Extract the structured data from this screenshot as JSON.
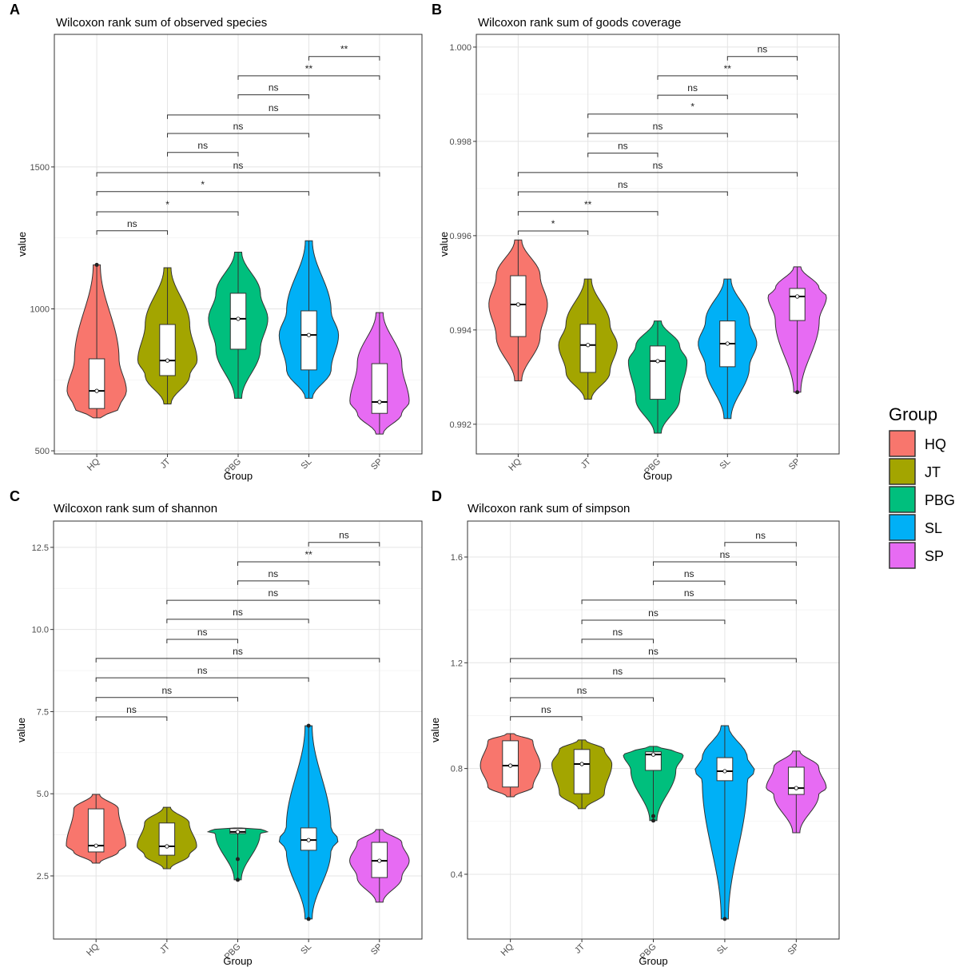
{
  "chart_data": [
    {
      "type": "violin",
      "panel_label": "A",
      "title": "Wilcoxon rank sum of observed species",
      "x_label": "Group",
      "y_label": "value",
      "categories": [
        "HQ",
        "JT",
        "PBG",
        "SL",
        "SP"
      ],
      "ylim": [
        489,
        1967
      ],
      "yticks": [
        500,
        1000,
        1500
      ],
      "series": [
        {
          "name": "HQ",
          "color": "#F8766D",
          "min": 616,
          "q1": 649,
          "median": 711,
          "q3": 824,
          "max": 1155,
          "outliers": [
            1155
          ]
        },
        {
          "name": "JT",
          "color": "#A3A500",
          "min": 665,
          "q1": 765,
          "median": 818,
          "q3": 945,
          "max": 1145,
          "outliers": []
        },
        {
          "name": "PBG",
          "color": "#00BF7D",
          "min": 685,
          "q1": 858,
          "median": 965,
          "q3": 1055,
          "max": 1200,
          "outliers": []
        },
        {
          "name": "SL",
          "color": "#00B0F6",
          "min": 685,
          "q1": 785,
          "median": 908,
          "q3": 993,
          "max": 1240,
          "outliers": []
        },
        {
          "name": "SP",
          "color": "#E76BF3",
          "min": 559,
          "q1": 632,
          "median": 672,
          "q3": 807,
          "max": 987,
          "outliers": []
        }
      ],
      "comparisons": [
        {
          "groups": [
            "HQ",
            "JT"
          ],
          "y": 1275,
          "label": "ns"
        },
        {
          "groups": [
            "HQ",
            "PBG"
          ],
          "y": 1342,
          "label": "*"
        },
        {
          "groups": [
            "HQ",
            "SL"
          ],
          "y": 1413,
          "label": "*"
        },
        {
          "groups": [
            "HQ",
            "SP"
          ],
          "y": 1480,
          "label": "ns"
        },
        {
          "groups": [
            "JT",
            "PBG"
          ],
          "y": 1551,
          "label": "ns"
        },
        {
          "groups": [
            "JT",
            "SL"
          ],
          "y": 1618,
          "label": "ns"
        },
        {
          "groups": [
            "JT",
            "SP"
          ],
          "y": 1683,
          "label": "ns"
        },
        {
          "groups": [
            "PBG",
            "SL"
          ],
          "y": 1754,
          "label": "ns"
        },
        {
          "groups": [
            "PBG",
            "SP"
          ],
          "y": 1821,
          "label": "**"
        },
        {
          "groups": [
            "SL",
            "SP"
          ],
          "y": 1889,
          "label": "**"
        }
      ]
    },
    {
      "type": "violin",
      "panel_label": "B",
      "title": "Wilcoxon rank sum of goods coverage",
      "x_label": "Group",
      "y_label": "value",
      "categories": [
        "HQ",
        "JT",
        "PBG",
        "SL",
        "SP"
      ],
      "ylim": [
        0.99137,
        1.00027
      ],
      "yticks": [
        0.992,
        0.994,
        0.996,
        0.998,
        {
          "value": 1,
          "label": "1.000"
        }
      ],
      "series": [
        {
          "name": "HQ",
          "color": "#F8766D",
          "min": 0.99292,
          "q1": 0.99386,
          "median": 0.99454,
          "q3": 0.99515,
          "max": 0.99591,
          "outliers": []
        },
        {
          "name": "JT",
          "color": "#A3A500",
          "min": 0.99253,
          "q1": 0.9931,
          "median": 0.99368,
          "q3": 0.99412,
          "max": 0.99508,
          "outliers": []
        },
        {
          "name": "PBG",
          "color": "#00BF7D",
          "min": 0.99181,
          "q1": 0.99253,
          "median": 0.99334,
          "q3": 0.99366,
          "max": 0.99419,
          "outliers": []
        },
        {
          "name": "SL",
          "color": "#00B0F6",
          "min": 0.99212,
          "q1": 0.99322,
          "median": 0.99371,
          "q3": 0.99419,
          "max": 0.99508,
          "outliers": []
        },
        {
          "name": "SP",
          "color": "#E76BF3",
          "min": 0.99268,
          "q1": 0.9942,
          "median": 0.99471,
          "q3": 0.99488,
          "max": 0.99534,
          "outliers": [
            0.99268
          ]
        }
      ],
      "comparisons": [
        {
          "groups": [
            "HQ",
            "JT"
          ],
          "y": 0.9961,
          "label": "*"
        },
        {
          "groups": [
            "HQ",
            "PBG"
          ],
          "y": 0.99651,
          "label": "**"
        },
        {
          "groups": [
            "HQ",
            "SL"
          ],
          "y": 0.99693,
          "label": "ns"
        },
        {
          "groups": [
            "HQ",
            "SP"
          ],
          "y": 0.99734,
          "label": "ns"
        },
        {
          "groups": [
            "JT",
            "PBG"
          ],
          "y": 0.99775,
          "label": "ns"
        },
        {
          "groups": [
            "JT",
            "SL"
          ],
          "y": 0.99817,
          "label": "ns"
        },
        {
          "groups": [
            "JT",
            "SP"
          ],
          "y": 0.99858,
          "label": "*"
        },
        {
          "groups": [
            "PBG",
            "SL"
          ],
          "y": 0.99898,
          "label": "ns"
        },
        {
          "groups": [
            "PBG",
            "SP"
          ],
          "y": 0.99939,
          "label": "**"
        },
        {
          "groups": [
            "SL",
            "SP"
          ],
          "y": 0.9998,
          "label": "ns"
        }
      ]
    },
    {
      "type": "violin",
      "panel_label": "C",
      "title": "Wilcoxon rank sum of shannon",
      "x_label": "Group",
      "y_label": "value",
      "categories": [
        "HQ",
        "JT",
        "PBG",
        "SL",
        "SP"
      ],
      "ylim": [
        0.578,
        13.3
      ],
      "yticks": [
        2.5,
        {
          "value": 5,
          "label": "5.0"
        },
        7.5,
        {
          "value": 10,
          "label": "10.0"
        },
        12.5
      ],
      "series": [
        {
          "name": "HQ",
          "color": "#F8766D",
          "min": 2.89,
          "q1": 3.23,
          "median": 3.42,
          "q3": 4.54,
          "max": 4.98,
          "outliers": []
        },
        {
          "name": "JT",
          "color": "#A3A500",
          "min": 2.72,
          "q1": 3.13,
          "median": 3.4,
          "q3": 4.11,
          "max": 4.59,
          "outliers": []
        },
        {
          "name": "PBG",
          "color": "#00BF7D",
          "min": 2.38,
          "q1": 3.79,
          "median": 3.84,
          "q3": 3.94,
          "max": 3.96,
          "outliers": [
            3.01,
            2.38
          ]
        },
        {
          "name": "SL",
          "color": "#00B0F6",
          "min": 1.19,
          "q1": 3.28,
          "median": 3.59,
          "q3": 3.96,
          "max": 7.07,
          "outliers": [
            7.07,
            1.19
          ]
        },
        {
          "name": "SP",
          "color": "#E76BF3",
          "min": 1.7,
          "q1": 2.45,
          "median": 2.96,
          "q3": 3.52,
          "max": 3.91,
          "outliers": []
        }
      ],
      "comparisons": [
        {
          "groups": [
            "HQ",
            "JT"
          ],
          "y": 7.34,
          "label": "ns"
        },
        {
          "groups": [
            "HQ",
            "PBG"
          ],
          "y": 7.93,
          "label": "ns"
        },
        {
          "groups": [
            "HQ",
            "SL"
          ],
          "y": 8.53,
          "label": "ns"
        },
        {
          "groups": [
            "HQ",
            "SP"
          ],
          "y": 9.12,
          "label": "ns"
        },
        {
          "groups": [
            "JT",
            "PBG"
          ],
          "y": 9.7,
          "label": "ns"
        },
        {
          "groups": [
            "JT",
            "SL"
          ],
          "y": 10.31,
          "label": "ns"
        },
        {
          "groups": [
            "JT",
            "SP"
          ],
          "y": 10.89,
          "label": "ns"
        },
        {
          "groups": [
            "PBG",
            "SL"
          ],
          "y": 11.48,
          "label": "ns"
        },
        {
          "groups": [
            "PBG",
            "SP"
          ],
          "y": 12.06,
          "label": "**"
        },
        {
          "groups": [
            "SL",
            "SP"
          ],
          "y": 12.65,
          "label": "ns"
        }
      ]
    },
    {
      "type": "violin",
      "panel_label": "D",
      "title": "Wilcoxon rank sum of simpson",
      "x_label": "Group",
      "y_label": "value",
      "categories": [
        "HQ",
        "JT",
        "PBG",
        "SL",
        "SP"
      ],
      "ylim": [
        0.155,
        1.736
      ],
      "yticks": [
        0.4,
        0.8,
        1.2,
        1.6
      ],
      "series": [
        {
          "name": "HQ",
          "color": "#F8766D",
          "min": 0.693,
          "q1": 0.73,
          "median": 0.811,
          "q3": 0.905,
          "max": 0.932,
          "outliers": []
        },
        {
          "name": "JT",
          "color": "#A3A500",
          "min": 0.648,
          "q1": 0.705,
          "median": 0.817,
          "q3": 0.872,
          "max": 0.908,
          "outliers": []
        },
        {
          "name": "PBG",
          "color": "#00BF7D",
          "min": 0.603,
          "q1": 0.793,
          "median": 0.853,
          "q3": 0.863,
          "max": 0.884,
          "outliers": [
            0.62,
            0.603
          ]
        },
        {
          "name": "SL",
          "color": "#00B0F6",
          "min": 0.231,
          "q1": 0.754,
          "median": 0.79,
          "q3": 0.841,
          "max": 0.962,
          "outliers": [
            0.231
          ]
        },
        {
          "name": "SP",
          "color": "#E76BF3",
          "min": 0.557,
          "q1": 0.702,
          "median": 0.726,
          "q3": 0.805,
          "max": 0.866,
          "outliers": []
        }
      ],
      "comparisons": [
        {
          "groups": [
            "HQ",
            "JT"
          ],
          "y": 0.996,
          "label": "ns"
        },
        {
          "groups": [
            "HQ",
            "PBG"
          ],
          "y": 1.068,
          "label": "ns"
        },
        {
          "groups": [
            "HQ",
            "SL"
          ],
          "y": 1.141,
          "label": "ns"
        },
        {
          "groups": [
            "HQ",
            "SP"
          ],
          "y": 1.216,
          "label": "ns"
        },
        {
          "groups": [
            "JT",
            "PBG"
          ],
          "y": 1.289,
          "label": "ns"
        },
        {
          "groups": [
            "JT",
            "SL"
          ],
          "y": 1.361,
          "label": "ns"
        },
        {
          "groups": [
            "JT",
            "SP"
          ],
          "y": 1.437,
          "label": "ns"
        },
        {
          "groups": [
            "PBG",
            "SL"
          ],
          "y": 1.509,
          "label": "ns"
        },
        {
          "groups": [
            "PBG",
            "SP"
          ],
          "y": 1.582,
          "label": "ns"
        },
        {
          "groups": [
            "SL",
            "SP"
          ],
          "y": 1.655,
          "label": "ns"
        }
      ]
    }
  ],
  "legend": {
    "title": "Group"
  }
}
